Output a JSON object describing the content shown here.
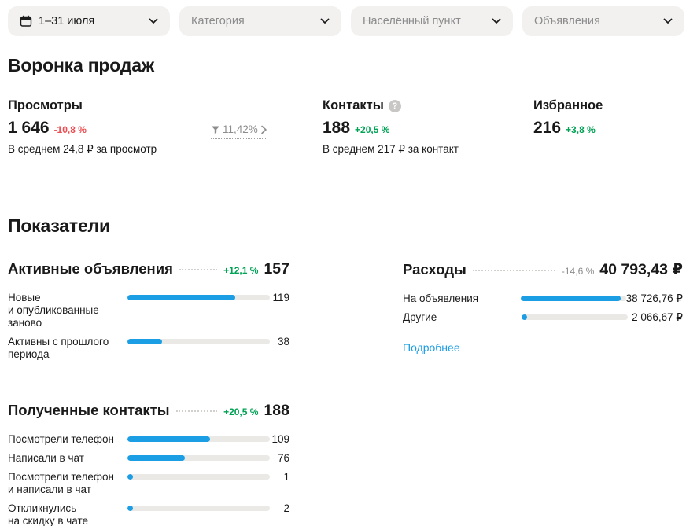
{
  "colors": {
    "accent_blue": "#1b9ee4",
    "positive_green": "#00a254",
    "negative_red": "#eb4d52",
    "neutral_gray": "#8c8c8c",
    "chip_bg": "#f2f1f0",
    "track_bg": "#ebe9e6"
  },
  "filters": [
    {
      "label": "1–31 июля"
    },
    {
      "label": "Категория"
    },
    {
      "label": "Населённый пункт"
    },
    {
      "label": "Объявления"
    }
  ],
  "funnel": {
    "title": "Воронка продаж",
    "help_glyph": "?",
    "conversion": "11,42%",
    "steps": [
      {
        "label": "Просмотры",
        "value": "1 646",
        "delta": "-10,8 %",
        "caption": "В среднем 24,8 ₽ за просмотр"
      },
      {
        "label": "Контакты",
        "value": "188",
        "delta": "+20,5 %",
        "caption": "В среднем 217 ₽ за контакт"
      },
      {
        "label": "Избранное",
        "value": "216",
        "delta": "+3,8 %"
      }
    ]
  },
  "metrics": {
    "title": "Показатели",
    "blocks": [
      {
        "title": "Активные объявления",
        "delta": "+12,1 %",
        "total": "157",
        "rows": [
          {
            "label": "Новые\nи опубликованные\nзаново",
            "value": "119",
            "fill": 75.8
          },
          {
            "label": "Активны с прошлого\nпериода",
            "value": "38",
            "fill": 24.2
          }
        ]
      },
      {
        "title": "Полученные контакты",
        "delta": "+20,5 %",
        "total": "188",
        "rows": [
          {
            "label": "Посмотрели телефон",
            "value": "109",
            "fill": 58
          },
          {
            "label": "Написали в чат",
            "value": "76",
            "fill": 40.4
          },
          {
            "label": "Посмотрели телефон\nи написали в чат",
            "value": "1",
            "fill": 3
          },
          {
            "label": "Откликнулись\nна скидку в чате",
            "value": "2",
            "fill": 3
          }
        ]
      },
      {
        "title": "Расходы",
        "delta": "-14,6 %",
        "total": "40 793,43 ₽",
        "link": "Подробнее",
        "rows": [
          {
            "label": "На объявления",
            "value": "38 726,76 ₽",
            "fill": 94.9
          },
          {
            "label": "Другие",
            "value": "2 066,67 ₽",
            "fill": 5.1
          }
        ]
      }
    ]
  }
}
